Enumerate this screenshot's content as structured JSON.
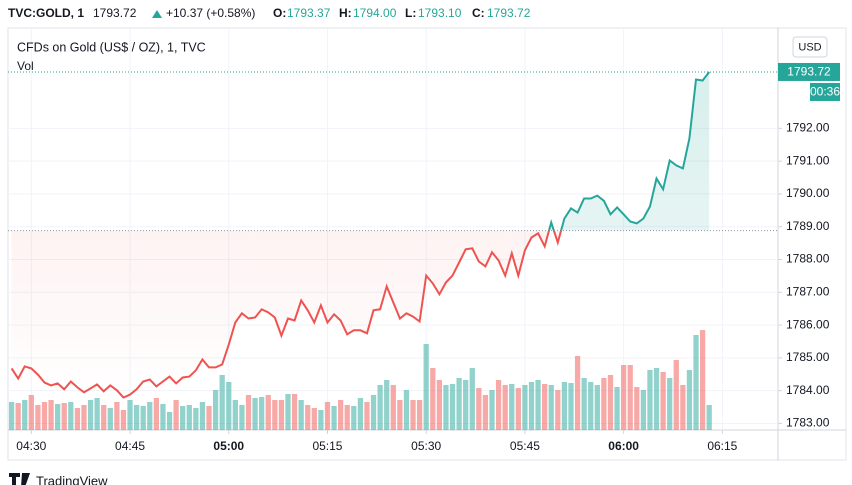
{
  "header": {
    "symbol": "TVC:GOLD, 1",
    "last": "1793.72",
    "change": "+10.37 (+0.58%)",
    "open_label": "O:",
    "open": "1793.37",
    "high_label": "H:",
    "high": "1794.00",
    "low_label": "L:",
    "low": "1793.10",
    "close_label": "C:",
    "close": "1793.72"
  },
  "chart_data": {
    "type": "line",
    "style": "baseline",
    "title": "CFDs on Gold (US$ / OZ), 1, TVC",
    "currency": "USD",
    "countdown": "00:36",
    "x": [
      "04:27",
      "04:28",
      "04:29",
      "04:30",
      "04:31",
      "04:32",
      "04:33",
      "04:34",
      "04:35",
      "04:36",
      "04:37",
      "04:38",
      "04:39",
      "04:40",
      "04:41",
      "04:42",
      "04:43",
      "04:44",
      "04:45",
      "04:46",
      "04:47",
      "04:48",
      "04:49",
      "04:50",
      "04:51",
      "04:52",
      "04:53",
      "04:54",
      "04:55",
      "04:56",
      "04:57",
      "04:58",
      "04:59",
      "05:00",
      "05:01",
      "05:02",
      "05:03",
      "05:04",
      "05:05",
      "05:06",
      "05:07",
      "05:08",
      "05:09",
      "05:10",
      "05:11",
      "05:12",
      "05:13",
      "05:14",
      "05:15",
      "05:16",
      "05:17",
      "05:18",
      "05:19",
      "05:20",
      "05:21",
      "05:22",
      "05:23",
      "05:24",
      "05:25",
      "05:26",
      "05:27",
      "05:28",
      "05:29",
      "05:30",
      "05:31",
      "05:32",
      "05:33",
      "05:34",
      "05:35",
      "05:36",
      "05:37",
      "05:38",
      "05:39",
      "05:40",
      "05:41",
      "05:42",
      "05:43",
      "05:44",
      "05:45",
      "05:46",
      "05:47",
      "05:48",
      "05:49",
      "05:50",
      "05:51",
      "05:52",
      "05:53",
      "05:54",
      "05:55",
      "05:56",
      "05:57",
      "05:58",
      "05:59",
      "06:00",
      "06:01",
      "06:02",
      "06:03",
      "06:04",
      "06:05",
      "06:06",
      "06:07",
      "06:08",
      "06:09",
      "06:10",
      "06:11",
      "06:12",
      "06:13"
    ],
    "values": [
      1784.68,
      1784.37,
      1784.74,
      1784.68,
      1784.49,
      1784.25,
      1784.16,
      1784.22,
      1784.04,
      1784.28,
      1784.1,
      1783.95,
      1784.07,
      1784.19,
      1783.98,
      1784.16,
      1784.01,
      1783.79,
      1783.88,
      1784.04,
      1784.28,
      1784.34,
      1784.13,
      1784.28,
      1784.43,
      1784.22,
      1784.4,
      1784.43,
      1784.62,
      1784.95,
      1784.71,
      1784.71,
      1784.8,
      1785.41,
      1786.08,
      1786.36,
      1786.2,
      1786.23,
      1786.48,
      1786.39,
      1786.23,
      1785.68,
      1786.2,
      1786.14,
      1786.75,
      1786.45,
      1786.08,
      1786.6,
      1786.08,
      1786.33,
      1786.14,
      1785.72,
      1785.84,
      1785.84,
      1785.75,
      1786.45,
      1786.48,
      1787.18,
      1786.69,
      1786.2,
      1786.36,
      1786.26,
      1786.11,
      1787.51,
      1787.27,
      1786.94,
      1787.3,
      1787.51,
      1787.91,
      1788.31,
      1788.34,
      1787.94,
      1787.79,
      1788.22,
      1787.97,
      1787.51,
      1788.19,
      1787.51,
      1788.28,
      1788.67,
      1788.8,
      1788.4,
      1789.13,
      1788.52,
      1789.25,
      1789.56,
      1789.43,
      1789.86,
      1789.86,
      1789.95,
      1789.79,
      1789.38,
      1789.59,
      1789.38,
      1789.16,
      1789.1,
      1789.25,
      1789.62,
      1790.47,
      1790.14,
      1791.02,
      1790.87,
      1790.78,
      1791.69,
      1793.49,
      1793.46,
      1793.72
    ],
    "baseline": 1788.88,
    "up_color": "#26a69a",
    "down_color": "#ef5350",
    "volume": {
      "name": "Vol",
      "up_color": "#26a69a80",
      "down_color": "#ef535080",
      "values": [
        28,
        27,
        30,
        35,
        25,
        28,
        30,
        26,
        27,
        28,
        22,
        25,
        30,
        32,
        25,
        22,
        28,
        20,
        30,
        25,
        24,
        28,
        32,
        26,
        18,
        30,
        24,
        25,
        22,
        28,
        24,
        40,
        55,
        48,
        30,
        25,
        35,
        32,
        33,
        35,
        30,
        30,
        36,
        36,
        30,
        25,
        22,
        20,
        28,
        24,
        30,
        25,
        24,
        32,
        28,
        35,
        45,
        50,
        45,
        30,
        40,
        30,
        30,
        86,
        62,
        50,
        45,
        46,
        52,
        50,
        62,
        42,
        35,
        40,
        50,
        45,
        46,
        42,
        45,
        48,
        50,
        46,
        45,
        40,
        48,
        47,
        74,
        52,
        48,
        45,
        52,
        55,
        43,
        65,
        65,
        43,
        40,
        60,
        62,
        58,
        52,
        70,
        45,
        60,
        95,
        100,
        25
      ]
    },
    "xlim": [
      "04:26",
      "06:23"
    ],
    "xticks": [
      {
        "value": "04:30",
        "label": "04:30"
      },
      {
        "value": "04:45",
        "label": "04:45"
      },
      {
        "value": "05:00",
        "label": "05:00",
        "major": true
      },
      {
        "value": "05:15",
        "label": "05:15"
      },
      {
        "value": "05:30",
        "label": "05:30"
      },
      {
        "value": "05:45",
        "label": "05:45"
      },
      {
        "value": "06:00",
        "label": "06:00",
        "major": true
      },
      {
        "value": "06:15",
        "label": "06:15"
      }
    ],
    "ylim": [
      1782.8,
      1795.0
    ],
    "yticks": [
      {
        "value": 1783,
        "label": "1783.00"
      },
      {
        "value": 1784,
        "label": "1784.00"
      },
      {
        "value": 1785,
        "label": "1785.00"
      },
      {
        "value": 1786,
        "label": "1786.00"
      },
      {
        "value": 1787,
        "label": "1787.00"
      },
      {
        "value": 1788,
        "label": "1788.00"
      },
      {
        "value": 1789,
        "label": "1789.00"
      },
      {
        "value": 1790,
        "label": "1790.00"
      },
      {
        "value": 1791,
        "label": "1791.00"
      },
      {
        "value": 1792,
        "label": "1792.00"
      }
    ],
    "grid": true
  },
  "footer": {
    "brand": "TradingView"
  }
}
